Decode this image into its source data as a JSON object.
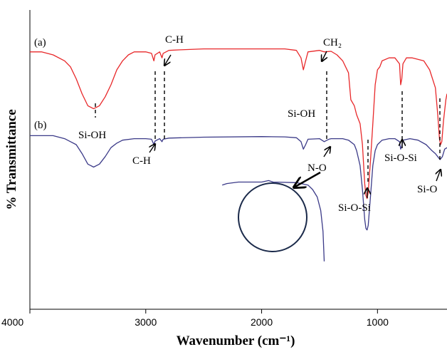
{
  "chart_data": {
    "type": "line",
    "xlabel": "Wavenumber (cm⁻¹)",
    "ylabel": "% Transmittance",
    "xlim": [
      4000,
      400
    ],
    "x_reversed": true,
    "x_ticks": [
      4000,
      3000,
      2000,
      1000
    ],
    "y_ticks_shown": false,
    "grid": false,
    "series": [
      {
        "name": "(a)",
        "color": "#e8282a",
        "points": [
          [
            4000,
            86
          ],
          [
            3900,
            86
          ],
          [
            3800,
            85
          ],
          [
            3700,
            83
          ],
          [
            3650,
            81
          ],
          [
            3600,
            77
          ],
          [
            3550,
            72
          ],
          [
            3500,
            68
          ],
          [
            3450,
            67
          ],
          [
            3400,
            68
          ],
          [
            3350,
            71
          ],
          [
            3300,
            75
          ],
          [
            3250,
            80
          ],
          [
            3200,
            83
          ],
          [
            3150,
            85
          ],
          [
            3100,
            86
          ],
          [
            3000,
            86
          ],
          [
            2950,
            85.5
          ],
          [
            2930,
            83
          ],
          [
            2920,
            85
          ],
          [
            2880,
            86
          ],
          [
            2860,
            84
          ],
          [
            2850,
            85.5
          ],
          [
            2800,
            86.5
          ],
          [
            2700,
            86.7
          ],
          [
            2500,
            87
          ],
          [
            2000,
            87
          ],
          [
            1800,
            87
          ],
          [
            1700,
            86.5
          ],
          [
            1660,
            84
          ],
          [
            1640,
            80
          ],
          [
            1620,
            83
          ],
          [
            1600,
            86
          ],
          [
            1500,
            86.5
          ],
          [
            1460,
            86
          ],
          [
            1400,
            86.2
          ],
          [
            1350,
            85
          ],
          [
            1300,
            83
          ],
          [
            1250,
            79
          ],
          [
            1230,
            70
          ],
          [
            1200,
            68
          ],
          [
            1180,
            65
          ],
          [
            1150,
            62
          ],
          [
            1130,
            55
          ],
          [
            1110,
            42
          ],
          [
            1100,
            38
          ],
          [
            1090,
            37
          ],
          [
            1080,
            39
          ],
          [
            1060,
            50
          ],
          [
            1040,
            62
          ],
          [
            1020,
            75
          ],
          [
            1000,
            80
          ],
          [
            980,
            81
          ],
          [
            960,
            83
          ],
          [
            900,
            84
          ],
          [
            850,
            84
          ],
          [
            810,
            82
          ],
          [
            800,
            75
          ],
          [
            790,
            77
          ],
          [
            780,
            82
          ],
          [
            750,
            84
          ],
          [
            700,
            84
          ],
          [
            600,
            83
          ],
          [
            550,
            80
          ],
          [
            500,
            74
          ],
          [
            480,
            65
          ],
          [
            465,
            57
          ],
          [
            455,
            55
          ],
          [
            445,
            56
          ],
          [
            430,
            63
          ],
          [
            410,
            70
          ],
          [
            400,
            72
          ]
        ]
      },
      {
        "name": "(b)",
        "color": "#3b3a88",
        "points": [
          [
            4000,
            58
          ],
          [
            3900,
            58
          ],
          [
            3800,
            58
          ],
          [
            3700,
            57
          ],
          [
            3650,
            56
          ],
          [
            3600,
            55
          ],
          [
            3550,
            52
          ],
          [
            3500,
            48.5
          ],
          [
            3450,
            47.5
          ],
          [
            3400,
            48.5
          ],
          [
            3350,
            51
          ],
          [
            3300,
            54
          ],
          [
            3250,
            55.5
          ],
          [
            3200,
            56.5
          ],
          [
            3100,
            57
          ],
          [
            3000,
            57
          ],
          [
            2950,
            56.8
          ],
          [
            2930,
            55
          ],
          [
            2920,
            56.2
          ],
          [
            2880,
            57
          ],
          [
            2860,
            56
          ],
          [
            2850,
            56.8
          ],
          [
            2800,
            57.2
          ],
          [
            2500,
            57.5
          ],
          [
            2000,
            57.7
          ],
          [
            1800,
            57.6
          ],
          [
            1700,
            57.3
          ],
          [
            1660,
            56
          ],
          [
            1640,
            53.5
          ],
          [
            1620,
            55
          ],
          [
            1600,
            56.8
          ],
          [
            1500,
            57
          ],
          [
            1460,
            56
          ],
          [
            1420,
            56.8
          ],
          [
            1400,
            57
          ],
          [
            1300,
            57
          ],
          [
            1250,
            56.5
          ],
          [
            1200,
            55
          ],
          [
            1180,
            53
          ],
          [
            1150,
            48
          ],
          [
            1130,
            40
          ],
          [
            1110,
            30
          ],
          [
            1100,
            27
          ],
          [
            1090,
            26.5
          ],
          [
            1080,
            28
          ],
          [
            1060,
            38
          ],
          [
            1040,
            48
          ],
          [
            1020,
            53
          ],
          [
            1000,
            55
          ],
          [
            960,
            56.5
          ],
          [
            900,
            57
          ],
          [
            850,
            57
          ],
          [
            810,
            56
          ],
          [
            800,
            53.5
          ],
          [
            790,
            54.5
          ],
          [
            780,
            56.5
          ],
          [
            720,
            57
          ],
          [
            650,
            56.5
          ],
          [
            580,
            55
          ],
          [
            530,
            53
          ],
          [
            500,
            52
          ],
          [
            480,
            51
          ],
          [
            460,
            50
          ],
          [
            440,
            51
          ],
          [
            420,
            53.5
          ],
          [
            400,
            54
          ]
        ]
      },
      {
        "name": "inset",
        "color": "#3b3a88",
        "points": [
          [
            2340,
            41.5
          ],
          [
            2300,
            42
          ],
          [
            2200,
            42.5
          ],
          [
            2000,
            42.5
          ],
          [
            1940,
            43
          ],
          [
            1900,
            42.5
          ],
          [
            1700,
            42.3
          ],
          [
            1600,
            41.5
          ],
          [
            1560,
            40
          ],
          [
            1520,
            37.5
          ],
          [
            1490,
            33
          ],
          [
            1470,
            26
          ],
          [
            1460,
            16
          ]
        ]
      }
    ],
    "series_labels": [
      "(a)",
      "(b)"
    ],
    "annotations": [
      "C-H",
      "CH₂",
      "Si-OH",
      "Si-OH",
      "C-H",
      "N-O",
      "Si-O-Si",
      "Si-O-Si",
      "Si-O"
    ]
  },
  "colors": {
    "series_a": "#e8282a",
    "series_b": "#3b3a88",
    "axis": "#000000",
    "circle": "#1b2a4a"
  }
}
